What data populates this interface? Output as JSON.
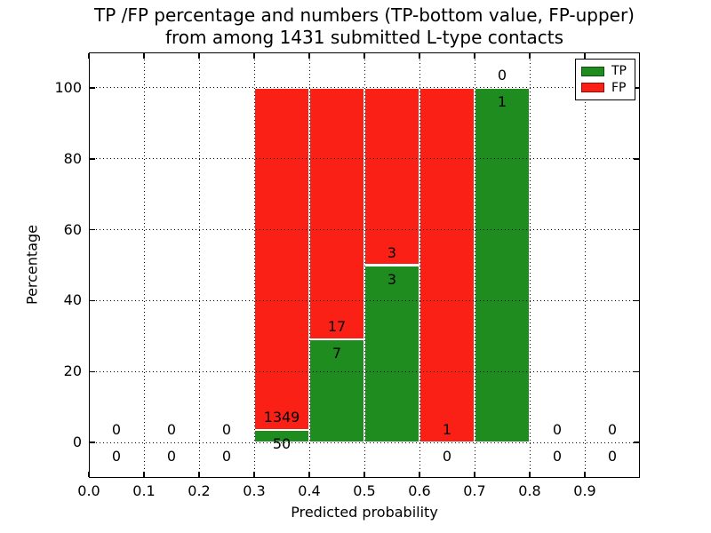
{
  "figure": {
    "title_line1": "TP /FP percentage and numbers (TP-bottom value, FP-upper)",
    "title_line2": "from among 1431 submitted L-type contacts"
  },
  "chart_data": {
    "type": "bar",
    "stacked": true,
    "title": "TP /FP percentage and numbers (TP-bottom value, FP-upper)\nfrom among 1431 submitted L-type contacts",
    "title_lines": [
      "TP /FP percentage and numbers (TP-bottom value, FP-upper)",
      "from among 1431 submitted L-type contacts"
    ],
    "xlabel": "Predicted probability",
    "ylabel": "Percentage",
    "xlim": [
      0.0,
      1.0
    ],
    "ylim": [
      -10,
      110
    ],
    "xticks": [
      0.0,
      0.1,
      0.2,
      0.3,
      0.4,
      0.5,
      0.6,
      0.7,
      0.8,
      0.9
    ],
    "xtick_labels": [
      "0.0",
      "0.1",
      "0.2",
      "0.3",
      "0.4",
      "0.5",
      "0.6",
      "0.7",
      "0.8",
      "0.9"
    ],
    "yticks": [
      0,
      20,
      40,
      60,
      80,
      100
    ],
    "grid": "dotted",
    "grid_on_top": true,
    "legend": {
      "position": "upper right",
      "entries": [
        {
          "label": "TP",
          "color": "#1f8c1f"
        },
        {
          "label": "FP",
          "color": "#fb2015"
        }
      ]
    },
    "bins": [
      {
        "range": [
          0.0,
          0.1
        ],
        "tp": 0,
        "fp": 0
      },
      {
        "range": [
          0.1,
          0.2
        ],
        "tp": 0,
        "fp": 0
      },
      {
        "range": [
          0.2,
          0.3
        ],
        "tp": 0,
        "fp": 0
      },
      {
        "range": [
          0.3,
          0.4
        ],
        "tp": 50,
        "fp": 1349
      },
      {
        "range": [
          0.4,
          0.5
        ],
        "tp": 7,
        "fp": 17
      },
      {
        "range": [
          0.5,
          0.6
        ],
        "tp": 3,
        "fp": 3
      },
      {
        "range": [
          0.6,
          0.7
        ],
        "tp": 0,
        "fp": 1
      },
      {
        "range": [
          0.7,
          0.8
        ],
        "tp": 1,
        "fp": 0
      },
      {
        "range": [
          0.8,
          0.9
        ],
        "tp": 0,
        "fp": 0
      },
      {
        "range": [
          0.9,
          1.0
        ],
        "tp": 0,
        "fp": 0
      }
    ]
  }
}
